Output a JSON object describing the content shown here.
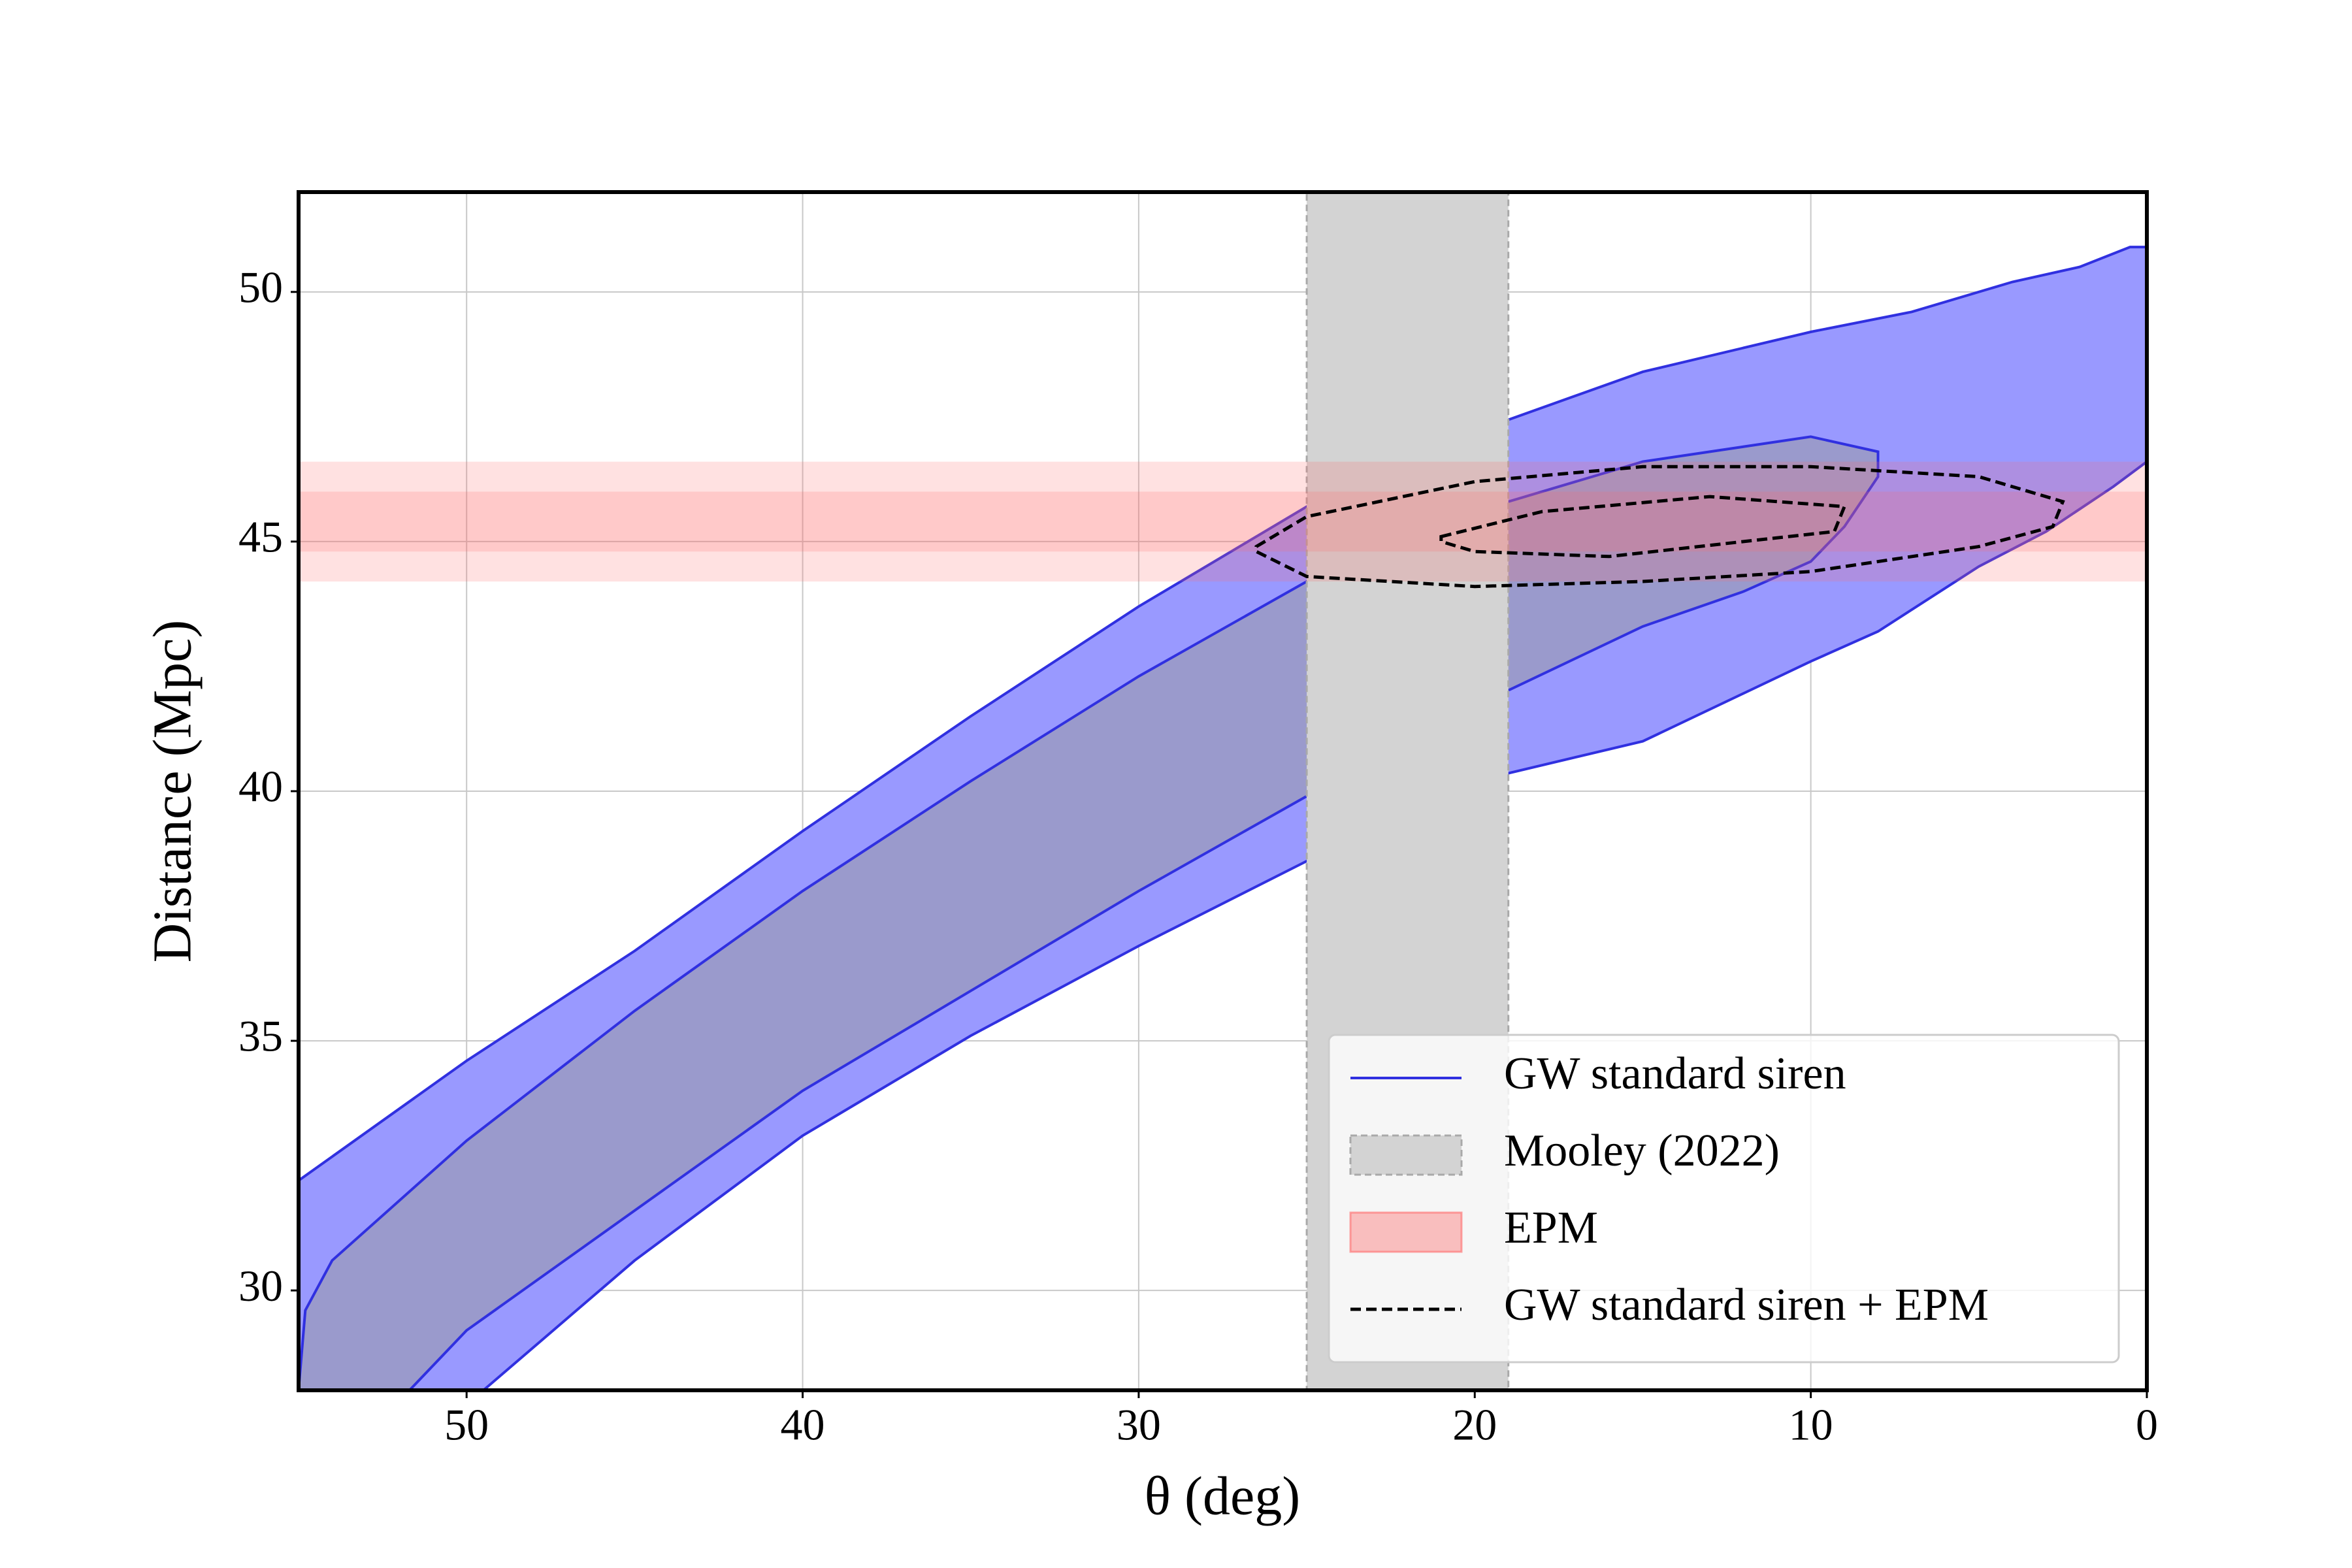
{
  "chart_data": {
    "type": "contour",
    "xlabel": "θ (deg)",
    "ylabel": "Distance (Mpc)",
    "xlim": [
      55,
      0
    ],
    "ylim": [
      28,
      52
    ],
    "xticks": [
      50,
      40,
      30,
      20,
      10,
      0
    ],
    "yticks": [
      30,
      35,
      40,
      45,
      50
    ],
    "grid": true,
    "legend": "lower right",
    "series": [
      {
        "name": "GW standard siren",
        "kind": "contour",
        "color": "#3030e0",
        "regions": [
          {
            "fill": "#9999ff",
            "x": [
              55,
              50,
              45,
              40,
              35,
              30,
              25,
              20,
              15,
              10,
              7,
              4,
              2,
              0.5,
              0,
              0,
              1,
              3,
              5,
              8,
              10,
              15,
              20,
              22,
              25,
              30,
              35,
              40,
              45,
              49.5,
              55
            ],
            "y": [
              32.2,
              34.6,
              36.8,
              39.2,
              41.5,
              43.7,
              45.7,
              47.2,
              48.4,
              49.2,
              49.6,
              50.2,
              50.5,
              50.9,
              50.9,
              46.6,
              46.1,
              45.2,
              44.5,
              43.2,
              42.6,
              41.0,
              40.2,
              39.6,
              38.6,
              36.9,
              35.1,
              33.1,
              30.6,
              28,
              28
            ]
          },
          {
            "fill": "#9a9acc",
            "x": [
              55,
              54.8,
              54,
              50,
              45,
              40,
              35,
              30,
              25,
              20,
              15,
              10,
              8,
              8,
              9,
              10,
              12,
              15,
              20,
              25,
              30,
              35,
              40,
              45,
              50,
              51.7
            ],
            "y": [
              28,
              29.6,
              30.6,
              33.0,
              35.6,
              38.0,
              40.2,
              42.3,
              44.2,
              45.6,
              46.6,
              47.1,
              46.8,
              46.3,
              45.3,
              44.6,
              44.0,
              43.3,
              41.7,
              39.9,
              38.0,
              36.0,
              34.0,
              31.6,
              29.2,
              28
            ]
          }
        ]
      },
      {
        "name": "Mooley (2022)",
        "kind": "vspan",
        "color": "#d3d3d3",
        "x": [
          25,
          19
        ]
      },
      {
        "name": "EPM",
        "kind": "hspan",
        "color": "#ff6b6b",
        "bands": [
          [
            44.2,
            46.6
          ],
          [
            44.8,
            46.0
          ]
        ]
      },
      {
        "name": "GW standard siren + EPM",
        "kind": "dashed-contour",
        "color": "#000000",
        "regions": [
          {
            "x": [
              26.5,
              25,
              20,
              15,
              10,
              5,
              2.5,
              2.8,
              5,
              10,
              15,
              20,
              25,
              26.5
            ],
            "y": [
              44.9,
              45.5,
              46.2,
              46.5,
              46.5,
              46.3,
              45.8,
              45.3,
              44.9,
              44.4,
              44.2,
              44.1,
              44.3,
              44.8
            ]
          },
          {
            "x": [
              21,
              18,
              13,
              9,
              9.3,
              12,
              16,
              20,
              21
            ],
            "y": [
              45.1,
              45.6,
              45.9,
              45.7,
              45.2,
              45.0,
              44.7,
              44.8,
              45.0
            ]
          }
        ]
      }
    ]
  }
}
